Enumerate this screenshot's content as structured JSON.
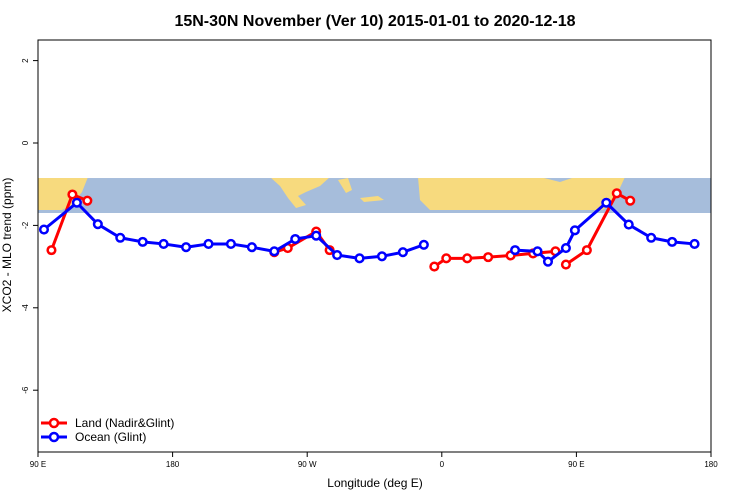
{
  "chart_data": {
    "type": "line",
    "title": "15N-30N November (Ver 10)   2015-01-01 to 2020-12-18",
    "xlabel": "Longitude (deg E)",
    "ylabel": "XCO2 - MLO trend (ppm)",
    "xlim": [
      90,
      540
    ],
    "ylim": [
      -7.5,
      2.5
    ],
    "xticks": [
      {
        "value": 90,
        "label": "90 E"
      },
      {
        "value": 180,
        "label": "180"
      },
      {
        "value": 270,
        "label": "90 W"
      },
      {
        "value": 360,
        "label": "0"
      },
      {
        "value": 450,
        "label": "90 E"
      },
      {
        "value": 540,
        "label": "180"
      }
    ],
    "yticks": [
      {
        "value": 2,
        "label": "2"
      },
      {
        "value": 0,
        "label": "0"
      },
      {
        "value": -2,
        "label": "-2"
      },
      {
        "value": -4,
        "label": "-4"
      },
      {
        "value": -6,
        "label": "-6"
      }
    ],
    "map_band": {
      "lat_range": [
        15,
        30
      ],
      "y_range": [
        -0.85,
        -1.7
      ],
      "ocean_color": "#A6BDDB",
      "land_color": "#F7DA7E"
    },
    "legend_position": "bottom-left",
    "series": [
      {
        "name": "Land (Nadir&Glint)",
        "color": "#FF0000",
        "segments": [
          [
            [
              99,
              -2.6
            ],
            [
              113,
              -1.25
            ],
            [
              123,
              -1.4
            ]
          ],
          [
            [
              248,
              -2.65
            ],
            [
              257,
              -2.55
            ],
            [
              276,
              -2.15
            ],
            [
              285,
              -2.6
            ]
          ],
          [
            [
              355,
              -3.0
            ],
            [
              363,
              -2.8
            ],
            [
              377,
              -2.8
            ],
            [
              391,
              -2.77
            ],
            [
              406,
              -2.73
            ],
            [
              421,
              -2.68
            ],
            [
              436,
              -2.63
            ]
          ],
          [
            [
              443,
              -2.95
            ],
            [
              457,
              -2.6
            ],
            [
              477,
              -1.22
            ],
            [
              486,
              -1.4
            ]
          ]
        ]
      },
      {
        "name": "Ocean (Glint)",
        "color": "#0000FF",
        "segments": [
          [
            [
              94,
              -2.1
            ],
            [
              116,
              -1.45
            ],
            [
              130,
              -1.97
            ],
            [
              145,
              -2.3
            ],
            [
              160,
              -2.4
            ],
            [
              174,
              -2.45
            ],
            [
              189,
              -2.53
            ],
            [
              204,
              -2.45
            ],
            [
              219,
              -2.45
            ],
            [
              233,
              -2.53
            ],
            [
              248,
              -2.63
            ],
            [
              262,
              -2.33
            ],
            [
              276,
              -2.25
            ],
            [
              290,
              -2.72
            ],
            [
              305,
              -2.8
            ],
            [
              320,
              -2.75
            ],
            [
              334,
              -2.65
            ],
            [
              348,
              -2.47
            ]
          ],
          [
            [
              409,
              -2.6
            ],
            [
              424,
              -2.63
            ],
            [
              431,
              -2.88
            ],
            [
              443,
              -2.55
            ],
            [
              449,
              -2.12
            ],
            [
              470,
              -1.45
            ],
            [
              485,
              -1.98
            ],
            [
              500,
              -2.3
            ],
            [
              514,
              -2.4
            ],
            [
              529,
              -2.45
            ]
          ]
        ]
      }
    ]
  }
}
